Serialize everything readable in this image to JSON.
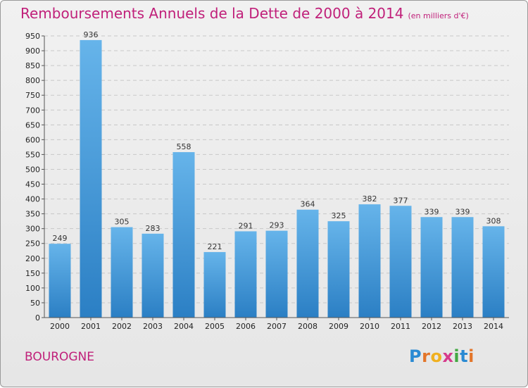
{
  "title": "Remboursements Annuels de la Dette de 2000 à 2014",
  "subtitle": "(en milliers d'€)",
  "commune": "BOUROGNE",
  "logo": {
    "letters": [
      "P",
      "r",
      "o",
      "x",
      "i",
      "t",
      "i"
    ],
    "colors": [
      "#2a8ad3",
      "#e3752a",
      "#f0b020",
      "#d63a8c",
      "#43a843",
      "#2a8ad3",
      "#e3752a"
    ]
  },
  "colors": {
    "bar_top": "#66b4ea",
    "bar_bottom": "#2b7fc4",
    "title": "#c0207a",
    "grid": "#c8c8c8"
  },
  "chart_data": {
    "type": "bar",
    "categories": [
      "2000",
      "2001",
      "2002",
      "2003",
      "2004",
      "2005",
      "2006",
      "2007",
      "2008",
      "2009",
      "2010",
      "2011",
      "2012",
      "2013",
      "2014"
    ],
    "values": [
      249,
      936,
      305,
      283,
      558,
      221,
      291,
      293,
      364,
      325,
      382,
      377,
      339,
      339,
      308
    ],
    "data_labels": [
      "249",
      "936",
      "305",
      "283",
      "558",
      "221",
      "291",
      "293",
      "364",
      "325",
      "382",
      "377",
      "339",
      "339",
      "308"
    ],
    "ylim": [
      0,
      950
    ],
    "yticks": [
      0,
      50,
      100,
      150,
      200,
      250,
      300,
      350,
      400,
      450,
      500,
      550,
      600,
      650,
      700,
      750,
      800,
      850,
      900,
      950
    ],
    "grid": true
  }
}
